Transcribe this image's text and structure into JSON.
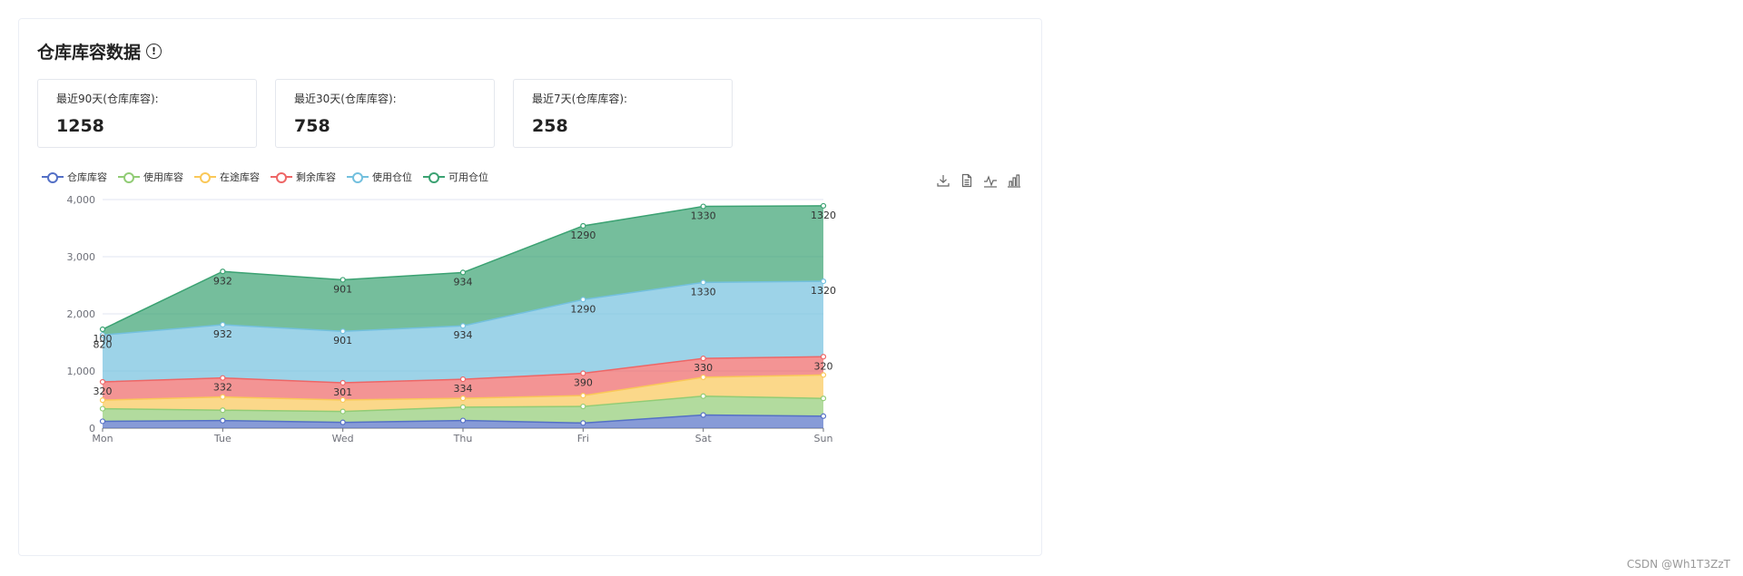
{
  "card": {
    "title": "仓库库容数据",
    "info_icon": "info-circle-icon"
  },
  "stats": [
    {
      "label": "最近90天(仓库库容):",
      "value": "1258"
    },
    {
      "label": "最近30天(仓库库容):",
      "value": "758"
    },
    {
      "label": "最近7天(仓库库容):",
      "value": "258"
    }
  ],
  "toolbox": [
    "download-icon",
    "data-view-icon",
    "line-chart-icon",
    "bar-chart-icon"
  ],
  "watermark": "CSDN @Wh1T3ZzT",
  "chart_data": {
    "type": "area",
    "stacked": true,
    "categories": [
      "Mon",
      "Tue",
      "Wed",
      "Thu",
      "Fri",
      "Sat",
      "Sun"
    ],
    "ylim": [
      0,
      4000
    ],
    "yticks": [
      "0",
      "1,000",
      "2,000",
      "3,000",
      "4,000"
    ],
    "grid": true,
    "legend_position": "top-left",
    "series": [
      {
        "name": "仓库库容",
        "color": "#5470c6",
        "values": [
          120,
          132,
          101,
          134,
          90,
          230,
          210
        ],
        "show_labels": false
      },
      {
        "name": "使用库容",
        "color": "#91cc75",
        "values": [
          220,
          182,
          191,
          234,
          290,
          330,
          310
        ],
        "show_labels": false
      },
      {
        "name": "在途库容",
        "color": "#fac858",
        "values": [
          150,
          232,
          201,
          154,
          190,
          330,
          410
        ],
        "show_labels": false
      },
      {
        "name": "剩余库容",
        "color": "#ee6666",
        "values": [
          320,
          332,
          301,
          334,
          390,
          330,
          320
        ],
        "show_labels": true
      },
      {
        "name": "使用仓位",
        "color": "#73c0de",
        "values": [
          820,
          932,
          901,
          934,
          1290,
          1330,
          1320
        ],
        "show_labels": true
      },
      {
        "name": "可用仓位",
        "color": "#3ba272",
        "values": [
          100,
          932,
          901,
          934,
          1290,
          1330,
          1320
        ],
        "show_labels": true
      }
    ]
  }
}
